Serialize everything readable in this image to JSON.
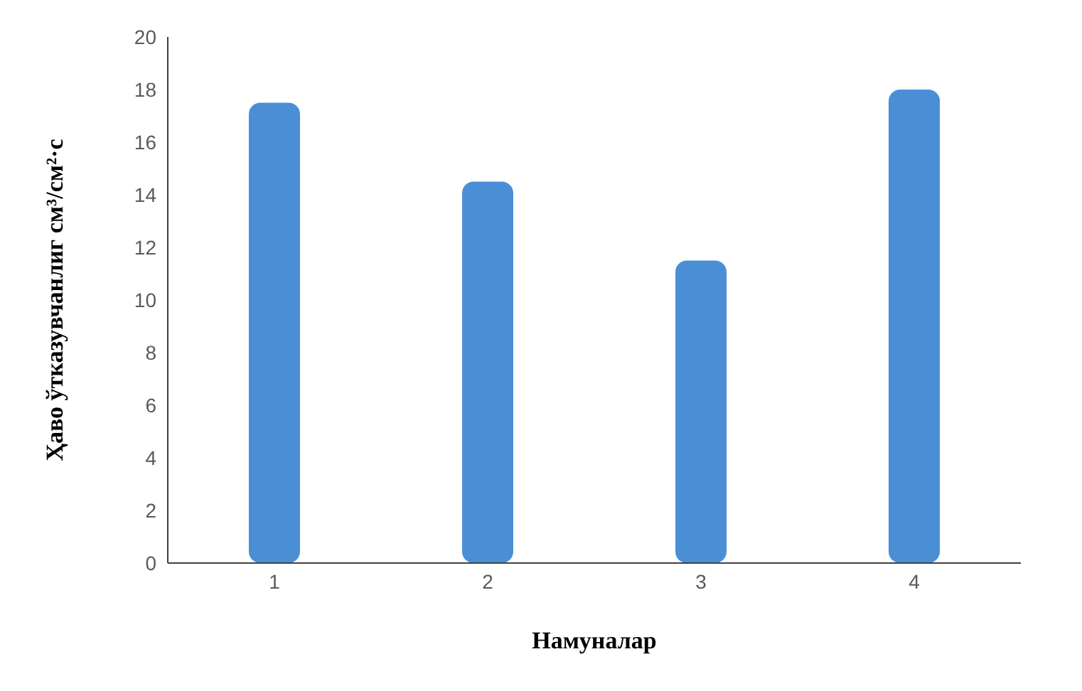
{
  "chart_data": {
    "type": "bar",
    "xlabel": "Намуналар",
    "ylabel": "Ҳаво ўтказувчанлиг см³/см²·с",
    "categories": [
      "1",
      "2",
      "3",
      "4"
    ],
    "values": [
      17.5,
      14.5,
      11.5,
      18
    ],
    "color": "#4a8fd6",
    "ylim": [
      0,
      20
    ],
    "yticks": [
      0,
      2,
      4,
      6,
      8,
      10,
      12,
      14,
      16,
      18,
      20
    ],
    "grid": false
  }
}
